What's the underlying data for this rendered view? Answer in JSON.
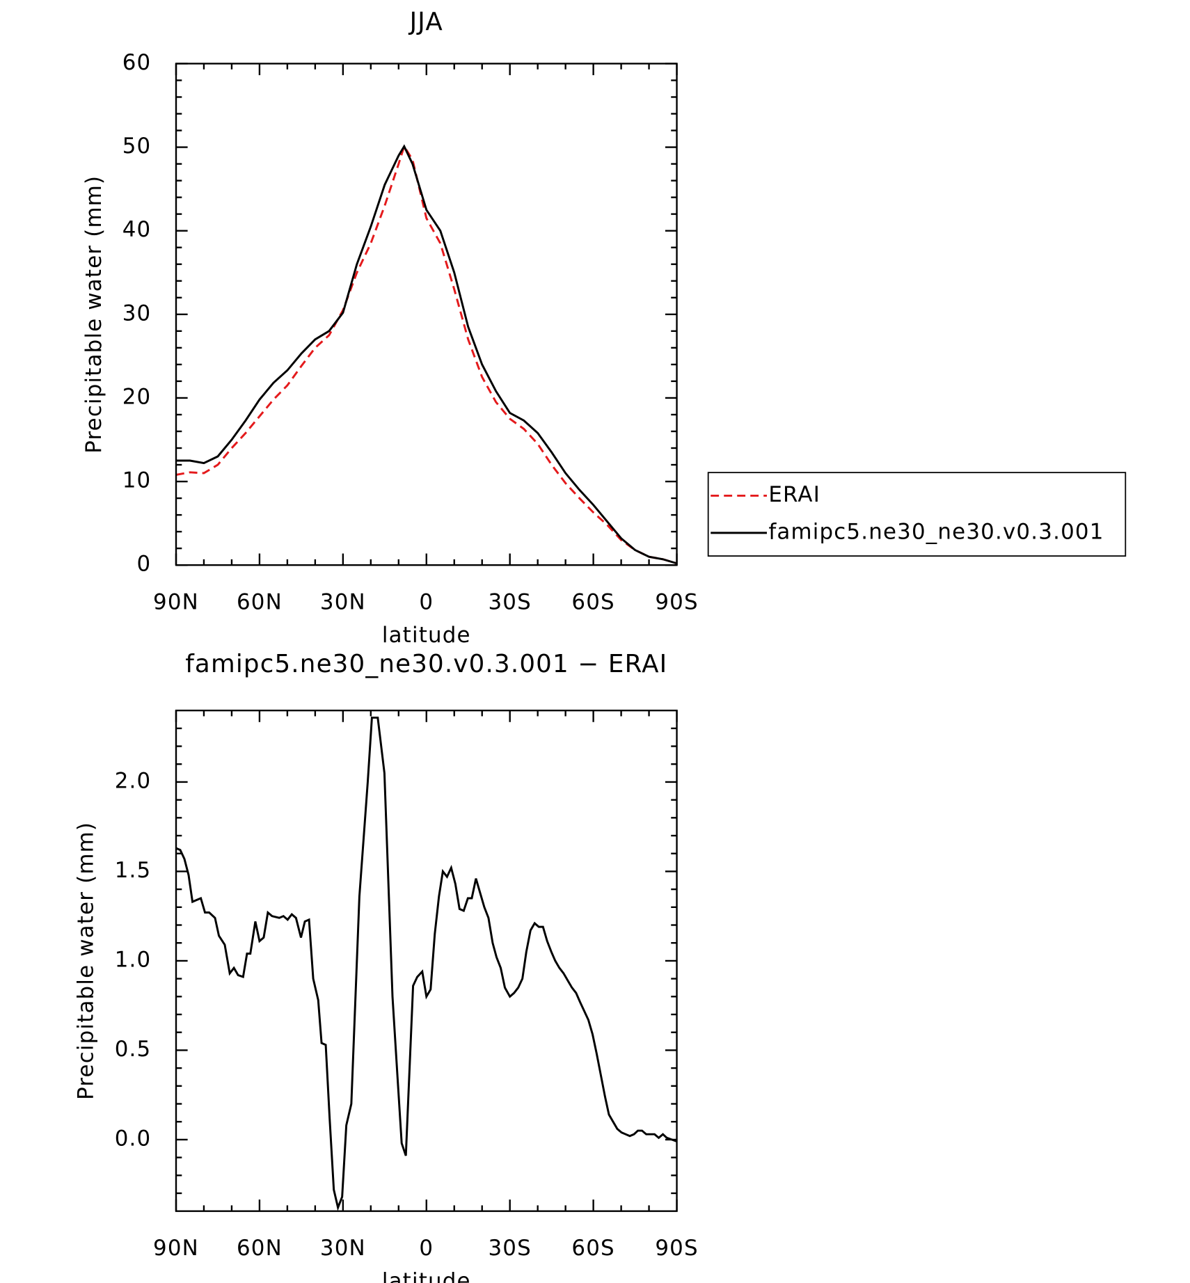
{
  "chart_data": [
    {
      "type": "line",
      "title": "JJA",
      "xlabel": "latitude",
      "ylabel": "Precipitable water (mm)",
      "x": [
        90,
        85,
        80,
        75,
        70,
        65,
        60,
        55,
        50,
        45,
        40,
        35,
        30,
        25,
        20,
        15,
        10,
        8,
        5,
        0,
        -5,
        -10,
        -15,
        -20,
        -25,
        -30,
        -35,
        -40,
        -45,
        -50,
        -55,
        -60,
        -65,
        -70,
        -75,
        -80,
        -85,
        -90
      ],
      "series": [
        {
          "name": "ERAI",
          "color": "#e41a1c",
          "linestyle": "dashed",
          "values": [
            10.8,
            11.1,
            11.0,
            12.0,
            14.0,
            15.8,
            17.8,
            19.8,
            21.5,
            23.8,
            26.0,
            27.5,
            30.5,
            35.0,
            38.5,
            43.0,
            48.0,
            50.1,
            48.5,
            41.5,
            38.5,
            33.0,
            27.0,
            22.5,
            19.5,
            17.5,
            16.3,
            14.5,
            12.0,
            9.8,
            8.0,
            6.3,
            4.8,
            3.0,
            1.8,
            1.0,
            0.7,
            0.2
          ]
        },
        {
          "name": "famipc5.ne30_ne30.v0.3.001",
          "color": "#000000",
          "linestyle": "solid",
          "values": [
            12.5,
            12.5,
            12.2,
            13.0,
            15.0,
            17.3,
            19.8,
            21.8,
            23.3,
            25.3,
            27.0,
            28.0,
            30.2,
            36.0,
            40.5,
            45.5,
            49.0,
            50.1,
            48.0,
            42.5,
            40.0,
            35.0,
            28.5,
            24.0,
            20.8,
            18.2,
            17.3,
            15.8,
            13.5,
            11.0,
            9.0,
            7.2,
            5.2,
            3.2,
            1.8,
            1.0,
            0.7,
            0.2
          ]
        }
      ],
      "xlim": [
        90,
        -90
      ],
      "xticks": [
        {
          "value": 90,
          "label": "90N"
        },
        {
          "value": 60,
          "label": "60N"
        },
        {
          "value": 30,
          "label": "30N"
        },
        0,
        {
          "value": -30,
          "label": "30S"
        },
        {
          "value": -60,
          "label": "60S"
        },
        {
          "value": -90,
          "label": "90S"
        }
      ],
      "xminor": [
        80,
        70,
        50,
        40,
        20,
        10,
        -10,
        -20,
        -40,
        -50,
        -70,
        -80
      ],
      "ylim": [
        0,
        60
      ],
      "yticks": [
        0,
        10,
        20,
        30,
        40,
        50,
        60
      ],
      "yminor": [
        2,
        4,
        6,
        8,
        12,
        14,
        16,
        18,
        22,
        24,
        26,
        28,
        32,
        34,
        36,
        38,
        42,
        44,
        46,
        48,
        52,
        54,
        56,
        58
      ],
      "legend": "right"
    },
    {
      "type": "line",
      "title": "famipc5.ne30_ne30.v0.3.001 − ERAI",
      "xlabel": "latitude",
      "ylabel": "Precipitable water (mm)",
      "x": [
        90,
        88.5,
        87.0,
        85.5,
        84.1,
        82.6,
        81.1,
        79.6,
        78.1,
        76.0,
        74.6,
        72.5,
        70.7,
        69.2,
        67.7,
        65.9,
        64.5,
        63.3,
        61.5,
        60,
        58.5,
        57.0,
        55.5,
        52.9,
        51.4,
        49.9,
        48.4,
        46.9,
        45.1,
        43.7,
        42.2,
        40.7,
        38.9,
        37.7,
        36.2,
        34.8,
        33.3,
        31.8,
        30.3,
        28.8,
        27.0,
        24.1,
        21.1,
        19.6,
        17.5,
        15.1,
        12.2,
        10.4,
        8.9,
        7.4,
        4.8,
        3.3,
        1.5,
        0,
        -1.5,
        -3.0,
        -4.5,
        -5.9,
        -7.4,
        -8.9,
        -10.4,
        -11.9,
        -13.4,
        -14.9,
        -16.3,
        -17.8,
        -20.8,
        -22.3,
        -23.8,
        -25.2,
        -26.7,
        -28.2,
        -30,
        -31.5,
        -33.0,
        -34.5,
        -35.9,
        -37.4,
        -38.9,
        -40.4,
        -41.9,
        -43.4,
        -44.9,
        -46.3,
        -47.8,
        -49.3,
        -50.8,
        -52.3,
        -53.8,
        -55.2,
        -56.7,
        -58.2,
        -59.7,
        -61.2,
        -62.7,
        -64.2,
        -65.6,
        -67.1,
        -68.6,
        -70.1,
        -71.6,
        -73.1,
        -74.6,
        -76.0,
        -77.5,
        -79.0,
        -80.5,
        -82.0,
        -83.5,
        -85.0,
        -86.4,
        -88.2,
        -90
      ],
      "values": [
        1.63,
        1.62,
        1.57,
        1.48,
        1.33,
        1.34,
        1.35,
        1.27,
        1.27,
        1.24,
        1.14,
        1.09,
        0.93,
        0.96,
        0.92,
        0.91,
        1.04,
        1.04,
        1.22,
        1.11,
        1.13,
        1.27,
        1.25,
        1.24,
        1.25,
        1.23,
        1.26,
        1.24,
        1.13,
        1.22,
        1.23,
        0.9,
        0.78,
        0.54,
        0.53,
        0.12,
        -0.28,
        -0.38,
        -0.32,
        0.08,
        0.2,
        1.36,
        2.0,
        2.36,
        2.36,
        2.05,
        0.8,
        0.35,
        -0.02,
        -0.09,
        0.86,
        0.91,
        0.94,
        0.8,
        0.84,
        1.15,
        1.36,
        1.5,
        1.47,
        1.52,
        1.43,
        1.29,
        1.28,
        1.35,
        1.35,
        1.46,
        1.3,
        1.24,
        1.1,
        1.02,
        0.96,
        0.85,
        0.8,
        0.82,
        0.85,
        0.9,
        1.05,
        1.17,
        1.21,
        1.19,
        1.19,
        1.11,
        1.05,
        1.0,
        0.96,
        0.93,
        0.89,
        0.85,
        0.82,
        0.77,
        0.72,
        0.67,
        0.59,
        0.48,
        0.36,
        0.24,
        0.14,
        0.1,
        0.06,
        0.04,
        0.03,
        0.02,
        0.03,
        0.05,
        0.05,
        0.03,
        0.03,
        0.03,
        0.01,
        0.03,
        0.01,
        0.0,
        -0.01
      ],
      "color": "#000000",
      "xlim": [
        90,
        -90
      ],
      "xticks": [
        {
          "value": 90,
          "label": "90N"
        },
        {
          "value": 60,
          "label": "60N"
        },
        {
          "value": 30,
          "label": "30N"
        },
        0,
        {
          "value": -30,
          "label": "30S"
        },
        {
          "value": -60,
          "label": "60S"
        },
        {
          "value": -90,
          "label": "90S"
        }
      ],
      "xminor": [
        80,
        70,
        50,
        40,
        20,
        10,
        -10,
        -20,
        -40,
        -50,
        -70,
        -80
      ],
      "ylim": [
        -0.4,
        2.4
      ],
      "yticks": [
        {
          "value": 0,
          "label": "0.0"
        },
        0.5,
        {
          "value": 1,
          "label": "1.0"
        },
        1.5,
        {
          "value": 2,
          "label": "2.0"
        }
      ],
      "yminor": [
        -0.3,
        -0.2,
        -0.1,
        0.1,
        0.2,
        0.3,
        0.4,
        0.6,
        0.7,
        0.8,
        0.9,
        1.1,
        1.2,
        1.3,
        1.4,
        1.6,
        1.7,
        1.8,
        1.9,
        2.1,
        2.2,
        2.3
      ]
    }
  ]
}
